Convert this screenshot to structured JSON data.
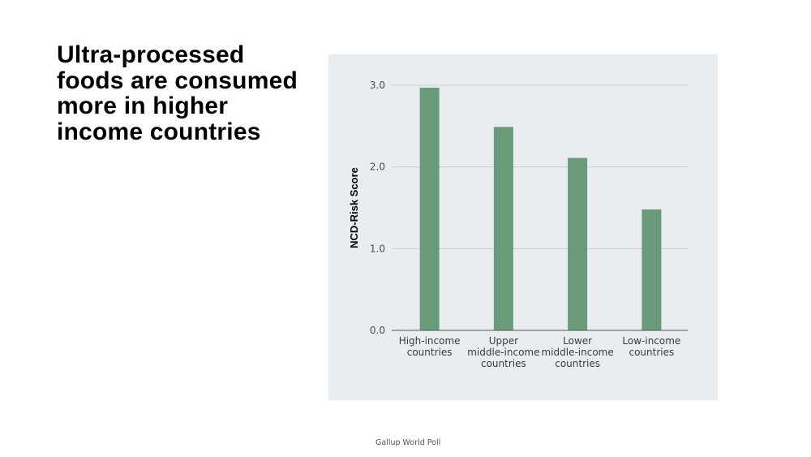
{
  "slide": {
    "title": "Ultra-processed foods are consumed more in higher income countries",
    "source": "Gallup World Poll"
  },
  "chart_data": {
    "type": "bar",
    "categories": [
      [
        "High-income",
        "countries"
      ],
      [
        "Upper",
        "middle-income",
        "countries"
      ],
      [
        "Lower",
        "middle-income",
        "countries"
      ],
      [
        "Low-income",
        "countries"
      ]
    ],
    "values": [
      2.97,
      2.49,
      2.11,
      1.48
    ],
    "ylabel": "NCD-Risk Score",
    "xlabel": "",
    "ylim": [
      0,
      3
    ],
    "yticks": [
      "0.0",
      "1.0",
      "2.0",
      "3.0"
    ],
    "grid": true,
    "colors": {
      "bar": "#6a9a79",
      "grid": "#c9ced2",
      "axis": "#555555",
      "panel": "#e9edf0"
    }
  }
}
